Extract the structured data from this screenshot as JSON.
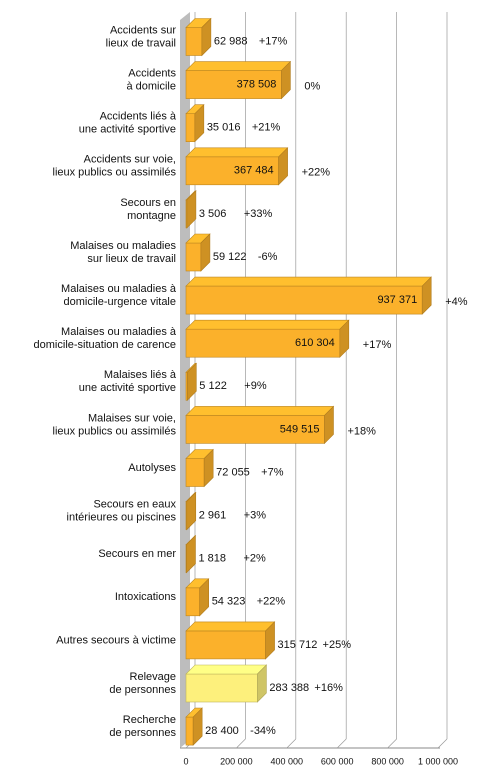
{
  "chart_data": {
    "type": "bar3d-horizontal",
    "categories": [
      [
        "Accidents sur",
        "lieux de travail"
      ],
      [
        "Accidents",
        "à domicile"
      ],
      [
        "Accidents liés à",
        "une activité sportive"
      ],
      [
        "Accidents sur voie,",
        "lieux publics ou assimilés"
      ],
      [
        "Secours en",
        "montagne"
      ],
      [
        "Malaises ou maladies",
        "sur lieux de travail"
      ],
      [
        "Malaises ou maladies à",
        "domicile-urgence vitale"
      ],
      [
        "Malaises ou maladies à",
        "domicile-situation de carence"
      ],
      [
        "Malaises liés à",
        "une activité sportive"
      ],
      [
        "Malaises sur voie,",
        "lieux publics ou assimilés"
      ],
      [
        "Autolyses"
      ],
      [
        "Secours en eaux",
        "intérieures ou piscines"
      ],
      [
        "Secours en mer"
      ],
      [
        "Intoxications"
      ],
      [
        "Autres secours à victime"
      ],
      [
        "Relevage",
        "de personnes"
      ],
      [
        "Recherche",
        "de personnes"
      ]
    ],
    "values": [
      62988,
      378508,
      35016,
      367484,
      3506,
      59122,
      937371,
      610304,
      5122,
      549515,
      72055,
      2961,
      1818,
      54323,
      315712,
      283388,
      28400
    ],
    "value_labels": [
      "62 988",
      "378 508",
      "35 016",
      "367 484",
      "3 506",
      "59 122",
      "937 371",
      "610 304",
      "5 122",
      "549 515",
      "72 055",
      "2 961",
      "1 818",
      "54 323",
      "315 712",
      "283 388",
      "28 400"
    ],
    "changes": [
      "+17%",
      "0%",
      "+21%",
      "+22%",
      "+33%",
      "-6%",
      "+4%",
      "+17%",
      "+9%",
      "+18%",
      "+7%",
      "+3%",
      "+2%",
      "+22%",
      "+25%",
      "+16%",
      "-34%"
    ],
    "colors": [
      "#fbb12b",
      "#fbb12b",
      "#fbb12b",
      "#fbb12b",
      "#fbb12b",
      "#fbb12b",
      "#fbb12b",
      "#fbb12b",
      "#fbb12b",
      "#fbb12b",
      "#fbb12b",
      "#fbb12b",
      "#fbb12b",
      "#fbb12b",
      "#fbb12b",
      "#fdf07c",
      "#fbb12b"
    ],
    "xlim": [
      0,
      1000000
    ],
    "xticks": [
      0,
      {
        "value": 200000,
        "label": "200 000"
      },
      {
        "value": 400000,
        "label": "400 000"
      },
      {
        "value": 600000,
        "label": "600 000"
      },
      {
        "value": 800000,
        "label": "800 000"
      },
      {
        "value": 1000000,
        "label": "1 000 000"
      }
    ],
    "grid": true
  }
}
